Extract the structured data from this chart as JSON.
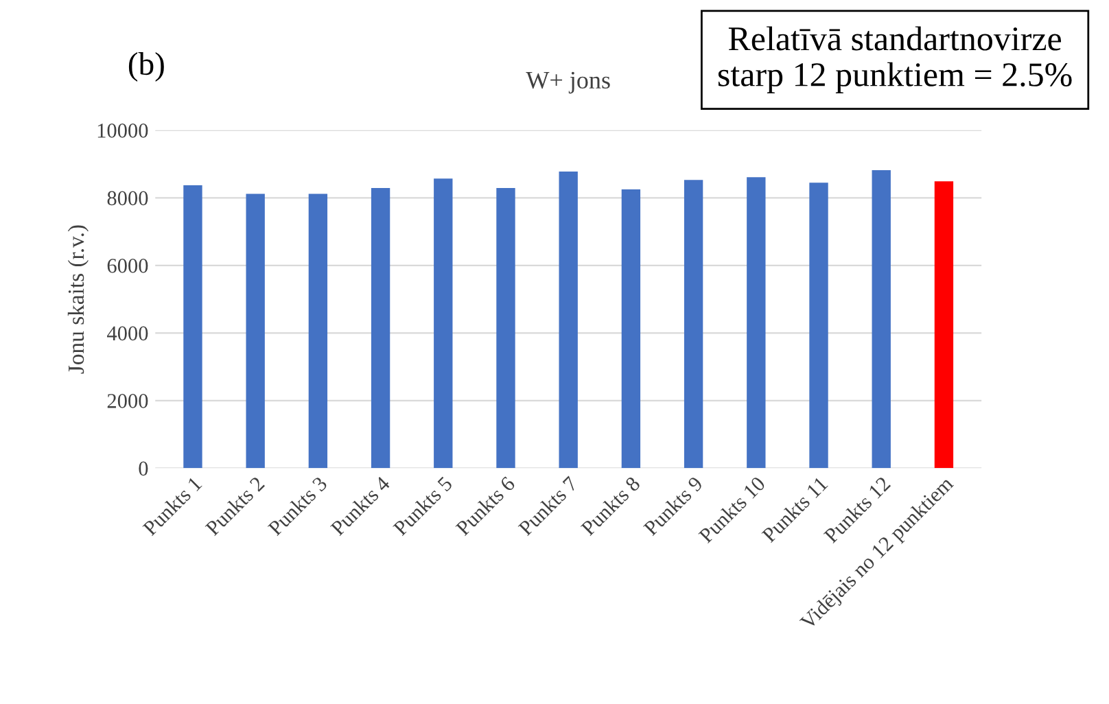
{
  "chart_data": {
    "type": "bar",
    "title": "W+ jons",
    "ylabel": "Jonu skaits (r.v.)",
    "categories": [
      "Punkts 1",
      "Punkts 2",
      "Punkts 3",
      "Punkts 4",
      "Punkts 5",
      "Punkts 6",
      "Punkts 7",
      "Punkts 8",
      "Punkts 9",
      "Punkts 10",
      "Punkts 11",
      "Punkts 12",
      "Vidējais no 12 punktiem"
    ],
    "values": [
      8370,
      8120,
      8120,
      8290,
      8570,
      8290,
      8780,
      8250,
      8530,
      8610,
      8450,
      8820,
      8490
    ],
    "colors": [
      "#4472c4",
      "#4472c4",
      "#4472c4",
      "#4472c4",
      "#4472c4",
      "#4472c4",
      "#4472c4",
      "#4472c4",
      "#4472c4",
      "#4472c4",
      "#4472c4",
      "#4472c4",
      "#ff0000"
    ],
    "ylim": [
      0,
      10000
    ],
    "yticks": [
      0,
      2000,
      4000,
      6000,
      8000,
      10000
    ],
    "grid": "y",
    "annotations": [
      "(b)",
      "Relatīvā standartnovirze\nstarp 12 punktiem = 2.5%"
    ]
  }
}
